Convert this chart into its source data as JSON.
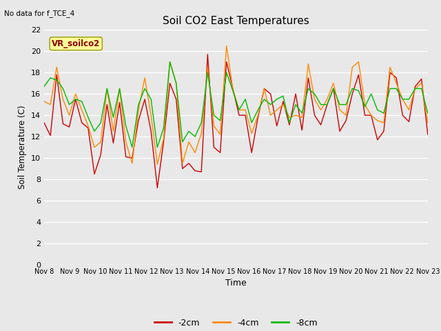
{
  "title": "Soil CO2 East Temperatures",
  "corner_text": "No data for f_TCE_4",
  "xlabel": "Time",
  "ylabel": "Soil Temperature (C)",
  "legend_label": "VR_soilco2",
  "ylim": [
    0,
    22
  ],
  "yticks": [
    0,
    2,
    4,
    6,
    8,
    10,
    12,
    14,
    16,
    18,
    20,
    22
  ],
  "xtick_labels": [
    "Nov 8",
    "Nov 9",
    "Nov 10",
    "Nov 11",
    "Nov 12",
    "Nov 13",
    "Nov 14",
    "Nov 15",
    "Nov 16",
    "Nov 17",
    "Nov 18",
    "Nov 19",
    "Nov 20",
    "Nov 21",
    "Nov 22",
    "Nov 23"
  ],
  "series": {
    "-2cm": {
      "color": "#cc0000",
      "values": [
        13.3,
        12.1,
        17.8,
        13.2,
        12.9,
        15.5,
        13.3,
        12.8,
        8.5,
        10.3,
        15.0,
        11.4,
        15.2,
        10.1,
        10.0,
        13.5,
        15.5,
        12.5,
        7.2,
        11.5,
        17.0,
        15.5,
        9.0,
        9.5,
        8.8,
        8.7,
        19.7,
        11.0,
        10.5,
        19.0,
        16.5,
        14.0,
        14.0,
        10.5,
        13.8,
        16.5,
        16.0,
        13.0,
        15.3,
        13.1,
        16.0,
        12.6,
        17.5,
        14.0,
        13.1,
        15.0,
        16.5,
        12.5,
        13.5,
        16.0,
        17.8,
        14.0,
        14.0,
        11.7,
        12.5,
        18.0,
        17.5,
        14.0,
        13.4,
        16.7,
        17.4,
        12.2
      ]
    },
    "-4cm": {
      "color": "#ff8800",
      "values": [
        15.3,
        15.0,
        18.5,
        15.5,
        14.0,
        16.0,
        14.5,
        13.0,
        11.0,
        11.5,
        16.5,
        12.5,
        16.5,
        11.5,
        9.5,
        14.5,
        17.5,
        14.0,
        9.4,
        11.8,
        19.0,
        17.0,
        9.5,
        11.5,
        10.5,
        12.3,
        18.5,
        13.0,
        12.2,
        20.5,
        16.5,
        14.5,
        14.5,
        12.3,
        14.0,
        16.5,
        14.0,
        14.5,
        15.0,
        13.8,
        14.0,
        13.8,
        18.8,
        15.5,
        14.5,
        15.5,
        17.0,
        14.5,
        14.0,
        18.5,
        19.0,
        15.0,
        14.0,
        13.5,
        13.3,
        18.5,
        17.0,
        15.5,
        14.5,
        16.5,
        17.0,
        13.3
      ]
    },
    "-8cm": {
      "color": "#00bb00",
      "values": [
        16.7,
        17.5,
        17.3,
        16.5,
        15.0,
        15.5,
        15.3,
        13.8,
        12.5,
        13.3,
        16.5,
        13.8,
        16.5,
        13.0,
        11.0,
        15.0,
        16.5,
        15.5,
        11.0,
        12.8,
        19.0,
        17.0,
        11.5,
        12.5,
        12.0,
        13.3,
        18.0,
        14.0,
        13.5,
        18.0,
        16.3,
        14.5,
        15.5,
        13.3,
        14.5,
        15.5,
        15.0,
        15.5,
        15.8,
        13.3,
        15.0,
        14.2,
        16.5,
        16.0,
        15.0,
        15.0,
        16.5,
        15.0,
        15.0,
        16.5,
        16.3,
        14.8,
        16.0,
        14.5,
        14.2,
        16.5,
        16.5,
        15.5,
        15.5,
        16.5,
        16.5,
        14.2
      ]
    }
  },
  "bg_color": "#e8e8e8",
  "plot_bg_color": "#e8e8e8",
  "grid_color": "#ffffff",
  "legend_box_color": "#ffff99",
  "legend_box_edge": "#999900",
  "fig_width": 6.4,
  "fig_height": 4.8,
  "dpi": 100
}
